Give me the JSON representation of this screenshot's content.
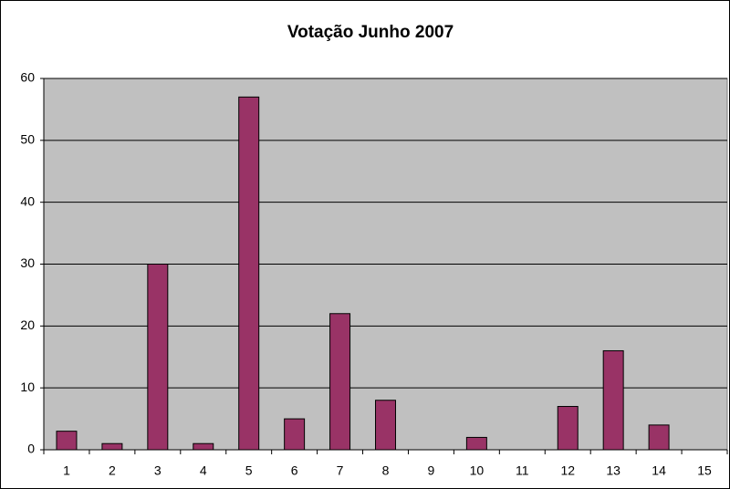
{
  "chart_data": {
    "type": "bar",
    "title": "Votação Junho 2007",
    "categories": [
      "1",
      "2",
      "3",
      "4",
      "5",
      "6",
      "7",
      "8",
      "9",
      "10",
      "11",
      "12",
      "13",
      "14",
      "15"
    ],
    "values": [
      3,
      1,
      30,
      1,
      57,
      5,
      22,
      8,
      0,
      2,
      0,
      7,
      16,
      4,
      0
    ],
    "color": "#993366",
    "ylim": [
      0,
      60
    ],
    "yticks": [
      0,
      10,
      20,
      30,
      40,
      50,
      60
    ],
    "grid": true
  }
}
